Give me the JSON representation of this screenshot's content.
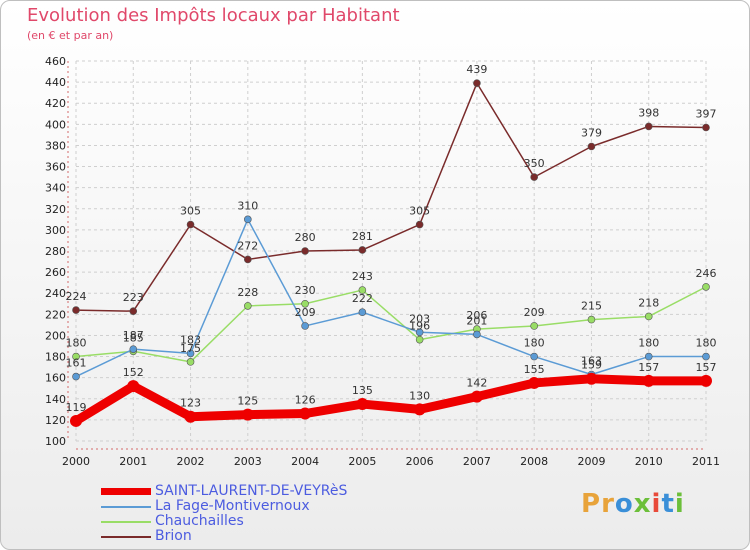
{
  "header": {
    "title": "Evolution des Impôts locaux par Habitant",
    "subtitle": "(en € et par an)"
  },
  "brand": {
    "text": "Proxiti",
    "colors": [
      "#e8a33a",
      "#e8a33a",
      "#3a8fd8",
      "#6cbf3a",
      "#e84a3a",
      "#3a8fd8",
      "#6cbf3a"
    ]
  },
  "chart_data": {
    "type": "line",
    "title": "Evolution des Impôts locaux par Habitant",
    "subtitle": "(en € et par an)",
    "xlabel": "",
    "ylabel": "",
    "x": [
      "2000",
      "2001",
      "2002",
      "2003",
      "2004",
      "2005",
      "2006",
      "2007",
      "2008",
      "2009",
      "2010",
      "2011"
    ],
    "ylim": [
      100,
      460
    ],
    "yticks": [
      100,
      120,
      140,
      160,
      180,
      200,
      220,
      240,
      260,
      280,
      300,
      320,
      340,
      360,
      380,
      400,
      420,
      440,
      460
    ],
    "grid": true,
    "legend_position": "bottom-left",
    "series": [
      {
        "name": "SAINT-LAURENT-DE-VEYRèS",
        "color": "#ee0000",
        "values": [
          119,
          152,
          123,
          125,
          126,
          135,
          130,
          142,
          155,
          159,
          157,
          157
        ]
      },
      {
        "name": "La Fage-Montivernoux",
        "color": "#5b9bd5",
        "values": [
          161,
          187,
          183,
          310,
          209,
          222,
          203,
          201,
          180,
          163,
          180,
          180
        ]
      },
      {
        "name": "Chauchailles",
        "color": "#99dd66",
        "values": [
          180,
          185,
          175,
          228,
          230,
          243,
          196,
          206,
          209,
          215,
          218,
          246
        ]
      },
      {
        "name": "Brion",
        "color": "#7a2b2b",
        "values": [
          224,
          223,
          305,
          272,
          280,
          281,
          305,
          439,
          350,
          379,
          398,
          397
        ]
      }
    ]
  }
}
